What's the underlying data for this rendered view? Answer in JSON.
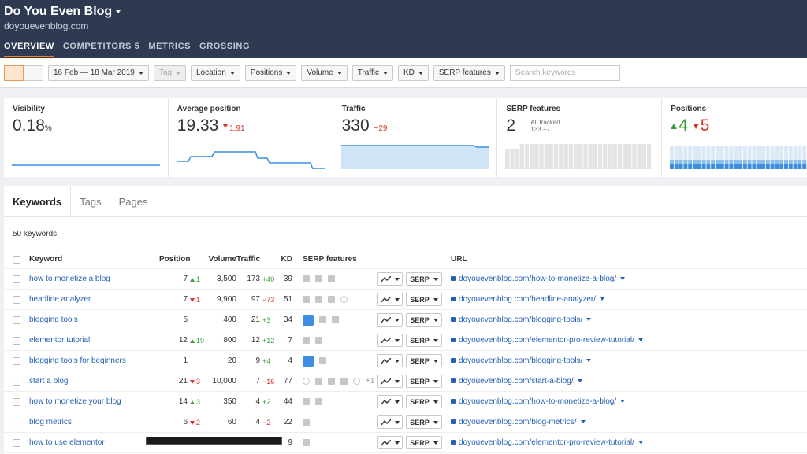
{
  "header": {
    "title": "Do You Even Blog",
    "domain": "doyouevenblog.com",
    "tabs": [
      "OVERVIEW",
      "COMPETITORS 5",
      "METRICS",
      "GROSSING"
    ]
  },
  "toolbar": {
    "date_range": "16 Feb — 18 Mar 2019",
    "filters": [
      "Tag",
      "Location",
      "Positions",
      "Volume",
      "Traffic",
      "KD",
      "SERP features"
    ],
    "search_placeholder": "Search keywords"
  },
  "metrics": [
    {
      "label": "Visibility",
      "value": "0.18",
      "unit": "%"
    },
    {
      "label": "Average position",
      "value": "19.33",
      "change": "1.91"
    },
    {
      "label": "Traffic",
      "value": "330",
      "change": "−29"
    },
    {
      "label": "SERP features",
      "value": "2",
      "note": "All tracked",
      "count": "133",
      "count_change": "+7"
    },
    {
      "label": "Positions",
      "up": "4",
      "down": "5"
    }
  ],
  "panel": {
    "tabs": [
      "Keywords",
      "Tags",
      "Pages"
    ],
    "count": "50 keywords"
  },
  "table": {
    "columns": [
      "Keyword",
      "Position",
      "Volume",
      "Traffic",
      "KD",
      "SERP features",
      "URL"
    ],
    "serp_button": "SERP",
    "rows": [
      {
        "keyword": "how to monetize a blog",
        "position": "7",
        "position_change": "1",
        "position_dir": "up",
        "volume": "3,500",
        "traffic": "173",
        "traffic_change": "+40",
        "kd": "39",
        "url": "doyouevenblog.com/how-to-monetize-a-blog/"
      },
      {
        "keyword": "headline analyzer",
        "position": "7",
        "position_change": "1",
        "position_dir": "down",
        "volume": "9,900",
        "traffic": "97",
        "traffic_change": "−73",
        "kd": "51",
        "url": "doyouevenblog.com/headline-analyzer/"
      },
      {
        "keyword": "blogging tools",
        "position": "5",
        "volume": "400",
        "traffic": "21",
        "traffic_change": "+3",
        "kd": "34",
        "url": "doyouevenblog.com/blogging-tools/"
      },
      {
        "keyword": "elementor tutorial",
        "position": "12",
        "position_change": "19",
        "position_dir": "up",
        "volume": "800",
        "traffic": "12",
        "traffic_change": "+12",
        "kd": "7",
        "url": "doyouevenblog.com/elementor-pro-review-tutorial/"
      },
      {
        "keyword": "blogging tools for beginners",
        "position": "1",
        "volume": "20",
        "traffic": "9",
        "traffic_change": "+4",
        "kd": "4",
        "url": "doyouevenblog.com/blogging-tools/"
      },
      {
        "keyword": "start a blog",
        "position": "21",
        "position_change": "3",
        "position_dir": "down",
        "volume": "10,000",
        "traffic": "7",
        "traffic_change": "−16",
        "kd": "77",
        "serp_extra": "+1",
        "url": "doyouevenblog.com/start-a-blog/"
      },
      {
        "keyword": "how to monetize your blog",
        "position": "14",
        "position_change": "3",
        "position_dir": "up",
        "volume": "350",
        "traffic": "4",
        "traffic_change": "+2",
        "kd": "44",
        "url": "doyouevenblog.com/how-to-monetize-a-blog/"
      },
      {
        "keyword": "blog metrics",
        "position": "6",
        "position_change": "2",
        "position_dir": "down",
        "volume": "60",
        "traffic": "4",
        "traffic_change": "−2",
        "kd": "22",
        "url": "doyouevenblog.com/blog-metrics/"
      },
      {
        "keyword": "how to use elementor",
        "kd": "9",
        "url": "doyouevenblog.com/elementor-pro-review-tutorial/"
      }
    ]
  }
}
